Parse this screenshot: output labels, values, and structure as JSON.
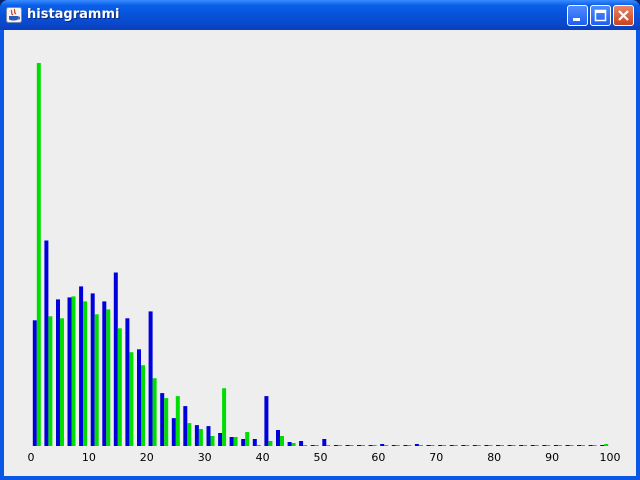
{
  "window": {
    "title": "histagrammi",
    "controls": [
      "minimize-icon",
      "maximize-icon",
      "close-icon"
    ]
  },
  "colors": {
    "series_blue": "#0000dd",
    "series_green": "#00dd00",
    "background": "#eeeeee"
  },
  "chart_data": {
    "type": "bar",
    "title": "",
    "xlabel": "",
    "ylabel": "",
    "xlim": [
      0,
      100
    ],
    "ylim": [
      0,
      385
    ],
    "grid": false,
    "x_ticks": [
      "0",
      "10",
      "20",
      "30",
      "40",
      "50",
      "60",
      "70",
      "80",
      "90",
      "100"
    ],
    "categories": [
      1,
      3,
      5,
      7,
      9,
      11,
      13,
      15,
      17,
      19,
      21,
      23,
      25,
      27,
      29,
      31,
      33,
      35,
      37,
      39,
      41,
      43,
      45,
      47,
      49,
      51,
      53,
      55,
      57,
      59,
      61,
      63,
      65,
      67,
      69,
      71,
      73,
      75,
      77,
      79,
      81,
      83,
      85,
      87,
      89,
      91,
      93,
      95,
      97,
      99
    ],
    "series": [
      {
        "values": [
          126,
          206,
          147,
          149,
          160,
          153,
          145,
          174,
          128,
          97,
          135,
          53,
          28,
          40,
          21,
          20,
          13,
          9,
          7,
          7,
          50,
          16,
          4,
          5,
          1,
          7,
          1,
          1,
          1,
          1,
          2,
          1,
          1,
          2,
          1,
          1,
          1,
          1,
          1,
          1,
          1,
          1,
          1,
          1,
          1,
          1,
          1,
          1,
          1,
          1
        ]
      },
      {
        "values": [
          384,
          130,
          128,
          150,
          145,
          132,
          137,
          118,
          94,
          81,
          68,
          48,
          50,
          23,
          17,
          10,
          58,
          9,
          14,
          1,
          5,
          10,
          3,
          1,
          1,
          1,
          1,
          1,
          1,
          1,
          1,
          1,
          1,
          1,
          1,
          1,
          1,
          1,
          1,
          1,
          1,
          1,
          1,
          1,
          1,
          1,
          1,
          1,
          1,
          2
        ]
      }
    ]
  }
}
